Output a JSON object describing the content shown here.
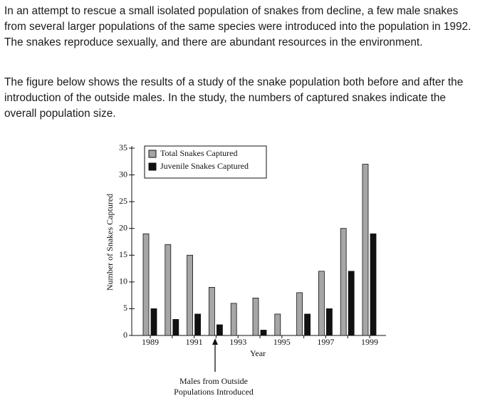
{
  "paragraphs": [
    "In an attempt to rescue a small isolated population of snakes from decline, a few male snakes from several larger populations of the same species were introduced into the population in 1992. The snakes reproduce sexually, and there are abundant resources in the environment.",
    "The figure below shows the results of a study of the snake population both before and after the introduction of the outside males. In the study, the numbers of captured snakes indicate the overall population size."
  ],
  "chart_data": {
    "type": "bar",
    "x_label": "Year",
    "y_label": "Number of Snakes Captured",
    "annotation": [
      "Males from Outside",
      "Populations Introduced"
    ],
    "categories": [
      "1989",
      null,
      "1991",
      null,
      "1993",
      null,
      "1995",
      null,
      "1997",
      null,
      "1999"
    ],
    "series": [
      {
        "name": "Total Snakes Captured",
        "color": "#a6a6a6",
        "values": [
          19,
          17,
          15,
          9,
          6,
          7,
          4,
          8,
          12,
          20,
          32
        ]
      },
      {
        "name": "Juvenile Snakes Captured",
        "color": "#111111",
        "values": [
          5,
          3,
          4,
          2,
          0,
          1,
          0,
          4,
          5,
          12,
          19
        ]
      }
    ],
    "ylim": [
      0,
      35
    ],
    "yticks": [
      0,
      5,
      10,
      15,
      20,
      25,
      30,
      35
    ]
  }
}
